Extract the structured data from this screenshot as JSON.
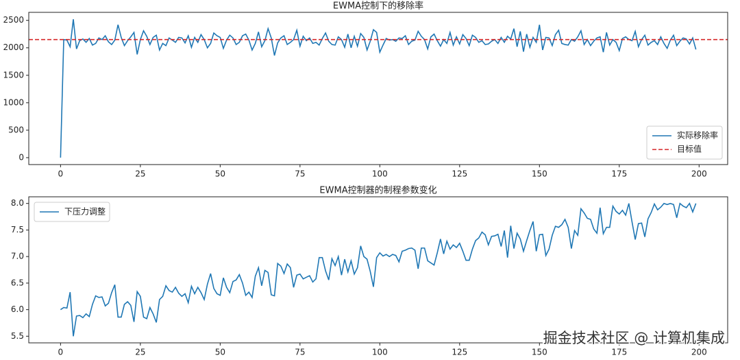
{
  "chart_data": [
    {
      "type": "line",
      "title": "EWMA控制下的移除率",
      "x": [
        0,
        1,
        2,
        3,
        4,
        5,
        6,
        7,
        8,
        9,
        10,
        11,
        12,
        13,
        14,
        15,
        16,
        17,
        18,
        19,
        20,
        21,
        22,
        23,
        24,
        25,
        26,
        27,
        28,
        29,
        30,
        31,
        32,
        33,
        34,
        35,
        36,
        37,
        38,
        39,
        40,
        41,
        42,
        43,
        44,
        45,
        46,
        47,
        48,
        49,
        50,
        51,
        52,
        53,
        54,
        55,
        56,
        57,
        58,
        59,
        60,
        61,
        62,
        63,
        64,
        65,
        66,
        67,
        68,
        69,
        70,
        71,
        72,
        73,
        74,
        75,
        76,
        77,
        78,
        79,
        80,
        81,
        82,
        83,
        84,
        85,
        86,
        87,
        88,
        89,
        90,
        91,
        92,
        93,
        94,
        95,
        96,
        97,
        98,
        99,
        100,
        101,
        102,
        103,
        104,
        105,
        106,
        107,
        108,
        109,
        110,
        111,
        112,
        113,
        114,
        115,
        116,
        117,
        118,
        119,
        120,
        121,
        122,
        123,
        124,
        125,
        126,
        127,
        128,
        129,
        130,
        131,
        132,
        133,
        134,
        135,
        136,
        137,
        138,
        139,
        140,
        141,
        142,
        143,
        144,
        145,
        146,
        147,
        148,
        149,
        150,
        151,
        152,
        153,
        154,
        155,
        156,
        157,
        158,
        159,
        160,
        161,
        162,
        163,
        164,
        165,
        166,
        167,
        168,
        169,
        170,
        171,
        172,
        173,
        174,
        175,
        176,
        177,
        178,
        179,
        180,
        181,
        182,
        183,
        184,
        185,
        186,
        187,
        188,
        189,
        190,
        191,
        192,
        193,
        194,
        195,
        196,
        197,
        198,
        199
      ],
      "series": [
        {
          "name": "实际移除率",
          "color": "#1f77b4",
          "values": [
            0,
            2150,
            2140,
            2020,
            2520,
            1980,
            2130,
            2160,
            2100,
            2170,
            2050,
            2080,
            2180,
            2150,
            2220,
            2110,
            2060,
            2140,
            2420,
            2190,
            2040,
            2130,
            2200,
            2280,
            1880,
            2150,
            2310,
            2210,
            2060,
            2190,
            2230,
            1960,
            2080,
            2040,
            2180,
            2140,
            2100,
            2190,
            2180,
            2090,
            2220,
            2010,
            2190,
            2100,
            2240,
            2150,
            2000,
            2080,
            2270,
            2220,
            2190,
            1990,
            2140,
            2230,
            2180,
            2060,
            2100,
            2220,
            2250,
            2140,
            1960,
            2080,
            2290,
            2020,
            2130,
            2350,
            2180,
            1860,
            2090,
            2180,
            2220,
            2060,
            2100,
            2150,
            2320,
            2030,
            2210,
            2130,
            2180,
            2080,
            2100,
            2050,
            2170,
            2270,
            2120,
            2060,
            2050,
            2200,
            2150,
            2010,
            2250,
            2000,
            2210,
            2030,
            2260,
            2190,
            1960,
            2120,
            2330,
            2280,
            1920,
            2050,
            2170,
            2140,
            2150,
            2120,
            2180,
            2170,
            2220,
            2060,
            2120,
            2140,
            2300,
            2210,
            2150,
            1980,
            2200,
            2250,
            2130,
            2030,
            2150,
            2080,
            2280,
            2050,
            2200,
            2070,
            2240,
            2170,
            2040,
            2230,
            2190,
            2100,
            2130,
            2060,
            2070,
            2120,
            2150,
            2080,
            2190,
            2100,
            2210,
            2160,
            2350,
            2020,
            2300,
            1930,
            2250,
            2010,
            2190,
            2100,
            2420,
            1960,
            2190,
            2180,
            2040,
            2240,
            2320,
            2080,
            2060,
            2050,
            2150,
            2120,
            2200,
            2310,
            2060,
            2150,
            2040,
            2120,
            2180,
            2200,
            1920,
            2280,
            2050,
            2150,
            2100,
            1950,
            2170,
            2200,
            2150,
            2130,
            2300,
            2020,
            2150,
            2230,
            2050,
            2100,
            2130,
            2060,
            2200,
            2080,
            1990,
            2140,
            2230,
            2040,
            2120,
            2180,
            2160,
            2070,
            2180,
            1970
          ]
        }
      ],
      "hlines": [
        {
          "name": "目标值",
          "value": 2150,
          "color": "#d62728",
          "style": "dashed"
        }
      ],
      "xlim": [
        -9.95,
        208.95
      ],
      "xticks": [
        0,
        25,
        50,
        75,
        100,
        125,
        150,
        175,
        200
      ],
      "ylim": [
        -126,
        2646
      ],
      "yticks": [
        0,
        500,
        1000,
        1500,
        2000,
        2500
      ],
      "legend": "lower right"
    },
    {
      "type": "line",
      "title": "EWMA控制器的制程参数变化",
      "x": [
        0,
        1,
        2,
        3,
        4,
        5,
        6,
        7,
        8,
        9,
        10,
        11,
        12,
        13,
        14,
        15,
        16,
        17,
        18,
        19,
        20,
        21,
        22,
        23,
        24,
        25,
        26,
        27,
        28,
        29,
        30,
        31,
        32,
        33,
        34,
        35,
        36,
        37,
        38,
        39,
        40,
        41,
        42,
        43,
        44,
        45,
        46,
        47,
        48,
        49,
        50,
        51,
        52,
        53,
        54,
        55,
        56,
        57,
        58,
        59,
        60,
        61,
        62,
        63,
        64,
        65,
        66,
        67,
        68,
        69,
        70,
        71,
        72,
        73,
        74,
        75,
        76,
        77,
        78,
        79,
        80,
        81,
        82,
        83,
        84,
        85,
        86,
        87,
        88,
        89,
        90,
        91,
        92,
        93,
        94,
        95,
        96,
        97,
        98,
        99,
        100,
        101,
        102,
        103,
        104,
        105,
        106,
        107,
        108,
        109,
        110,
        111,
        112,
        113,
        114,
        115,
        116,
        117,
        118,
        119,
        120,
        121,
        122,
        123,
        124,
        125,
        126,
        127,
        128,
        129,
        130,
        131,
        132,
        133,
        134,
        135,
        136,
        137,
        138,
        139,
        140,
        141,
        142,
        143,
        144,
        145,
        146,
        147,
        148,
        149,
        150,
        151,
        152,
        153,
        154,
        155,
        156,
        157,
        158,
        159,
        160,
        161,
        162,
        163,
        164,
        165,
        166,
        167,
        168,
        169,
        170,
        171,
        172,
        173,
        174,
        175,
        176,
        177,
        178,
        179,
        180,
        181,
        182,
        183,
        184,
        185,
        186,
        187,
        188,
        189,
        190,
        191,
        192,
        193,
        194,
        195,
        196,
        197,
        198,
        199
      ],
      "series": [
        {
          "name": "下压力调整",
          "color": "#1f77b4",
          "values": [
            6.0,
            6.04,
            6.03,
            6.33,
            5.5,
            5.88,
            5.89,
            5.85,
            5.92,
            5.87,
            6.1,
            6.26,
            6.23,
            6.24,
            6.07,
            6.12,
            6.32,
            6.47,
            5.86,
            5.86,
            6.1,
            6.15,
            6.08,
            5.77,
            6.34,
            6.25,
            5.86,
            5.83,
            6.04,
            5.92,
            5.76,
            6.19,
            6.25,
            6.45,
            6.36,
            6.33,
            6.42,
            6.31,
            6.25,
            6.3,
            6.13,
            6.44,
            6.3,
            6.42,
            6.32,
            6.19,
            6.48,
            6.68,
            6.4,
            6.3,
            6.27,
            6.6,
            6.42,
            6.32,
            6.53,
            6.56,
            6.66,
            6.5,
            6.27,
            6.33,
            6.23,
            6.63,
            6.79,
            6.45,
            6.74,
            6.7,
            6.28,
            6.26,
            6.87,
            6.82,
            6.68,
            6.86,
            6.79,
            6.42,
            6.65,
            6.67,
            6.58,
            6.61,
            6.64,
            6.52,
            6.58,
            6.98,
            6.98,
            6.73,
            6.56,
            6.96,
            6.83,
            7.0,
            6.65,
            6.95,
            6.71,
            6.92,
            6.67,
            6.79,
            7.2,
            7.0,
            6.95,
            6.72,
            6.43,
            6.98,
            7.07,
            7.01,
            7.04,
            7.0,
            7.04,
            7.02,
            6.9,
            7.1,
            7.12,
            7.15,
            7.16,
            7.12,
            6.77,
            7.16,
            7.16,
            6.92,
            6.88,
            6.84,
            7.07,
            7.33,
            7.05,
            7.29,
            7.14,
            7.22,
            7.17,
            7.25,
            7.1,
            6.93,
            6.93,
            7.14,
            7.3,
            7.35,
            7.46,
            7.41,
            7.22,
            7.38,
            7.39,
            7.42,
            7.19,
            7.49,
            6.98,
            7.58,
            7.15,
            7.44,
            7.33,
            7.1,
            7.3,
            7.49,
            7.66,
            7.1,
            7.41,
            7.42,
            7.02,
            7.14,
            7.4,
            7.57,
            7.55,
            7.6,
            7.7,
            7.55,
            7.15,
            7.49,
            7.4,
            7.9,
            7.82,
            7.72,
            7.7,
            7.52,
            7.44,
            7.92,
            7.43,
            7.55,
            7.55,
            7.95,
            7.85,
            7.8,
            7.87,
            7.78,
            8.0,
            7.65,
            7.32,
            7.62,
            7.63,
            7.37,
            7.71,
            7.83,
            7.99,
            7.88,
            7.93,
            8.0,
            7.98,
            8.0,
            7.98,
            7.73,
            8.0,
            7.95,
            7.92,
            8.0,
            7.84,
            8.0
          ]
        }
      ],
      "xlim": [
        -9.95,
        208.95
      ],
      "xticks": [
        0,
        25,
        50,
        75,
        100,
        125,
        150,
        175,
        200
      ],
      "ylim": [
        5.375,
        8.125
      ],
      "yticks": [
        5.5,
        {
          "value": 6,
          "label": "6.0"
        },
        6.5,
        {
          "value": 7,
          "label": "7.0"
        },
        7.5,
        {
          "value": 8,
          "label": "8.0"
        }
      ],
      "legend": "upper left"
    }
  ],
  "watermark": "掘金技术社区 @ 计算机集成"
}
